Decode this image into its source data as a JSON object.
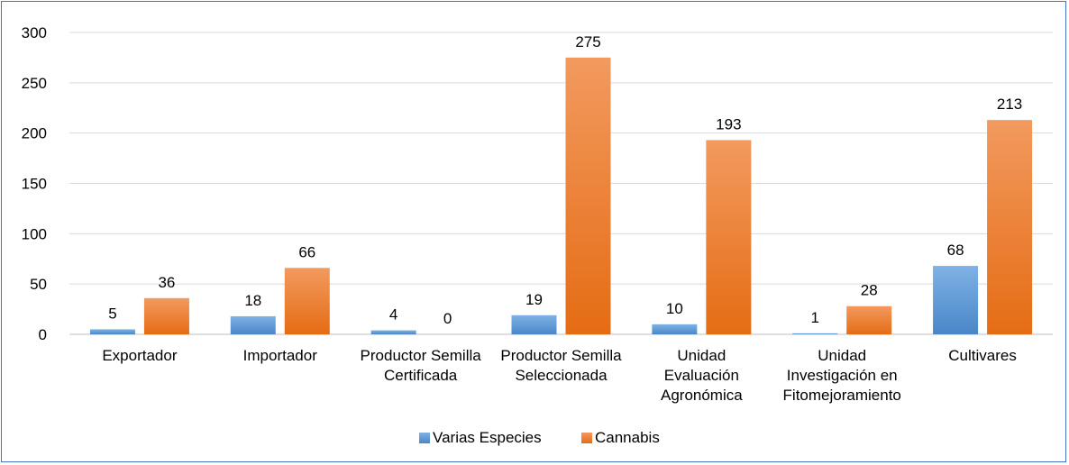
{
  "chart_data": {
    "type": "bar",
    "categories": [
      [
        "Exportador"
      ],
      [
        "Importador"
      ],
      [
        "Productor Semilla",
        "Certificada"
      ],
      [
        "Productor Semilla",
        "Seleccionada"
      ],
      [
        "Unidad",
        "Evaluación",
        "Agronómica"
      ],
      [
        "Unidad",
        "Investigación en",
        "Fitomejoramiento"
      ],
      [
        "Cultivares"
      ]
    ],
    "series": [
      {
        "name": "Varias Especies",
        "values": [
          5,
          18,
          4,
          19,
          10,
          1,
          68
        ],
        "color": "#5b9bd5"
      },
      {
        "name": "Cannabis",
        "values": [
          36,
          66,
          0,
          275,
          193,
          28,
          213
        ],
        "color": "#ed7d31"
      }
    ],
    "ylim": [
      0,
      300
    ],
    "yticks": [
      "0",
      "50",
      "100",
      "150",
      "200",
      "250",
      "300"
    ],
    "grid": true,
    "legend_position": "bottom"
  }
}
